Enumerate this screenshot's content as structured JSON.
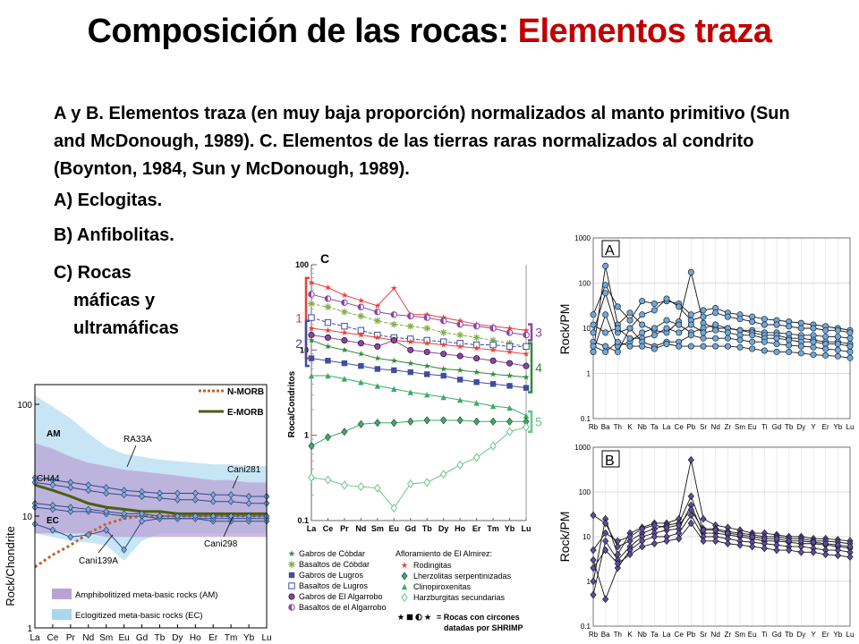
{
  "slide": {
    "title_main": "Composición de las rocas: ",
    "title_accent": "Elementos traza",
    "description": "A y B. Elementos traza (en muy baja proporción) normalizados al manto primitivo (Sun and McDonough, 1989). C. Elementos de las tierras raras normalizados al condrito (Boynton, 1984, Sun y McDonough, 1989).",
    "bullet_a": "A) Eclogitas.",
    "bullet_b": "B) Anfibolitas.",
    "bullet_c1": "C) Rocas",
    "bullet_c2": "máficas y",
    "bullet_c3": "ultramáficas"
  },
  "colors": {
    "title_accent": "#c00000",
    "am_fill": "#b9a3d4",
    "ec_fill": "#a9d7f0",
    "nmorb": "#c8612b",
    "emorb": "#4d5d17"
  },
  "chart_data": [
    {
      "id": "eclogite_ree",
      "type": "line",
      "yscale": "log",
      "ylabel": "Rock/Chondrite",
      "ylim": [
        1,
        150
      ],
      "ytick_labels": [
        "1",
        "10",
        "100"
      ],
      "categories": [
        "La",
        "Ce",
        "Pr",
        "Nd",
        "Sm",
        "Eu",
        "Gd",
        "Tb",
        "Dy",
        "Ho",
        "Er",
        "Tm",
        "Yb",
        "Lu"
      ],
      "legend": [
        {
          "name": "N-MORB",
          "style": "dotted"
        },
        {
          "name": "E-MORB",
          "style": "solid"
        },
        {
          "name": "Amphibolitized meta-basic rocks (AM)",
          "style": "band"
        },
        {
          "name": "Eclogitized meta-basic rocks (EC)",
          "style": "band"
        }
      ],
      "region_labels": [
        "AM",
        "EC"
      ],
      "annotations": [
        "RA33A",
        "CH44",
        "Cani281",
        "Cani298",
        "Cani139A"
      ],
      "bands": [
        {
          "name": "AM",
          "upper": [
            45,
            40,
            34,
            30,
            28,
            26,
            25,
            24,
            23,
            22,
            21,
            21,
            20,
            20
          ],
          "lower": [
            7,
            7,
            7,
            7,
            6.5,
            6.5,
            6.5,
            6.5,
            6.5,
            6.5,
            6.5,
            6.5,
            6.5,
            6.5
          ]
        },
        {
          "name": "EC",
          "upper": [
            120,
            95,
            75,
            55,
            42,
            36,
            34,
            32,
            31,
            30,
            29,
            29,
            28,
            28
          ],
          "lower": [
            7,
            6.5,
            6,
            5.8,
            5.5,
            4,
            6,
            7,
            7,
            7,
            7,
            7,
            7,
            7
          ]
        }
      ],
      "reference": [
        {
          "name": "N-MORB",
          "values": [
            3.5,
            4.5,
            5.5,
            7,
            8.5,
            9.5,
            10,
            10,
            10,
            10,
            10,
            10,
            10,
            10
          ]
        },
        {
          "name": "E-MORB",
          "values": [
            19,
            17,
            15,
            13,
            12,
            11.5,
            11,
            11,
            10.5,
            10.5,
            10.5,
            10.5,
            10.5,
            10.5
          ]
        }
      ],
      "series": [
        {
          "values": [
            22,
            21,
            20,
            19,
            18,
            17,
            16.5,
            16,
            16,
            16,
            15.5,
            15.5,
            15,
            15
          ]
        },
        {
          "values": [
            20,
            19,
            18,
            17,
            16,
            15.5,
            15,
            14.5,
            14,
            14,
            13.5,
            13.5,
            13,
            13
          ]
        },
        {
          "values": [
            12,
            11.5,
            11,
            11,
            10.5,
            10,
            10,
            9.5,
            9.5,
            9.5,
            9,
            9,
            9,
            9
          ]
        },
        {
          "values": [
            8.5,
            7.5,
            6.5,
            6.8,
            7.5,
            5,
            9,
            9.5,
            9.5,
            9.5,
            9.5,
            9.5,
            9.5,
            9.5
          ]
        },
        {
          "values": [
            13,
            12.5,
            12,
            11.5,
            11,
            10.5,
            10.5,
            10,
            10,
            10,
            10,
            10,
            10,
            10
          ]
        }
      ]
    },
    {
      "id": "ree_almirez",
      "panel_label": "C",
      "type": "line",
      "yscale": "log",
      "ylabel": "Roca/Condritos",
      "ylim": [
        0.1,
        100
      ],
      "ytick_labels": [
        "0.1",
        "1",
        "10",
        "100"
      ],
      "categories": [
        "La",
        "Ce",
        "Pr",
        "Nd",
        "Sm",
        "Eu",
        "Gd",
        "Tb",
        "Dy",
        "Ho",
        "Er",
        "Tm",
        "Yb",
        "Lu"
      ],
      "group_labels": [
        "1",
        "2",
        "3",
        "4",
        "5"
      ],
      "legend_header": "Afloramiento de El Almirez:",
      "legend": [
        "Gabros de Cóbdar",
        "Basaltos de Cóbdar",
        "Gabros de Lugros",
        "Basaltos de Lugros",
        "Gabros de El Algarrobo",
        "Basaltos de el Algarrobo",
        "Rodingitas",
        "Lherzolitas serpentinizadas",
        "Clinopiroxenitas",
        "Harzburgitas secundarias"
      ],
      "legend_footnote_1": "= Rocas con circones",
      "legend_footnote_2": "datadas por SHRIMP",
      "series": [
        {
          "name": "Rodingitas",
          "color": "#e8413a",
          "marker": "star",
          "values": [
            62,
            54,
            44,
            38,
            33,
            53,
            26,
            26,
            24,
            22,
            20,
            19,
            18,
            17
          ]
        },
        {
          "name": "Basaltos de el Algarrobo",
          "color": "#8d44a6",
          "marker": "halfcircle",
          "values": [
            45,
            40,
            36,
            32,
            28,
            26,
            25,
            24,
            22,
            20,
            19,
            18,
            16,
            15
          ]
        },
        {
          "name": "Basaltos de Cóbdar",
          "color": "#7fae47",
          "marker": "asterisk",
          "values": [
            35,
            32,
            28,
            25,
            22,
            20,
            19,
            18,
            16,
            15,
            14,
            13,
            12,
            11
          ]
        },
        {
          "name": "Basaltos de Lugros",
          "color": "#3e4da1",
          "marker": "opensquare",
          "values": [
            24,
            21,
            19,
            17,
            15,
            14,
            13.5,
            13,
            12.5,
            12,
            11.5,
            11.5,
            11,
            11
          ]
        },
        {
          "name": "Rodingitas",
          "color": "#e8413a",
          "marker": "star",
          "values": [
            18,
            17,
            16,
            15,
            14,
            13,
            12.5,
            12,
            11.5,
            11,
            10.5,
            10,
            9.5,
            9
          ]
        },
        {
          "name": "Gabros de El Algarrobo",
          "color": "#8d44a6",
          "marker": "circle",
          "values": [
            15,
            14,
            13,
            12,
            11,
            13,
            10,
            9.5,
            9,
            8.5,
            8,
            7.5,
            7,
            6.5
          ]
        },
        {
          "name": "Gabros de Cóbdar",
          "color": "#2e8b3a",
          "marker": "star",
          "values": [
            13,
            11,
            10,
            9,
            8,
            7.5,
            7,
            6.5,
            6,
            5.8,
            5.5,
            5.2,
            5,
            4.8
          ]
        },
        {
          "name": "Gabros de Lugros",
          "color": "#3e4da1",
          "marker": "square",
          "values": [
            8,
            7.5,
            7,
            6.5,
            6,
            5.8,
            5.5,
            5.2,
            5,
            4.5,
            4.2,
            4,
            3.8,
            3.6
          ]
        },
        {
          "name": "Clinopiroxenitas",
          "color": "#3aaa68",
          "marker": "triangle",
          "values": [
            5,
            5,
            4.6,
            4.2,
            3.8,
            3.5,
            3.2,
            3,
            2.8,
            2.6,
            2.4,
            2.2,
            2.1,
            1.7
          ]
        },
        {
          "name": "Lherzolitas serpentinizadas",
          "color": "#3aaa68",
          "marker": "diamond",
          "values": [
            0.75,
            0.95,
            1.1,
            1.35,
            1.4,
            1.4,
            1.45,
            1.5,
            1.5,
            1.5,
            1.45,
            1.45,
            1.45,
            1.45
          ]
        },
        {
          "name": "Harzburgitas secundarias",
          "color": "#6cc48a",
          "marker": "opendiamond",
          "values": [
            0.32,
            0.3,
            0.26,
            0.25,
            0.24,
            0.14,
            0.27,
            0.28,
            0.35,
            0.45,
            0.55,
            0.75,
            1.1,
            1.25
          ]
        }
      ]
    },
    {
      "id": "trace_eclogites",
      "panel_label": "A",
      "type": "line",
      "yscale": "log",
      "ylabel": "Rock/PM",
      "ylim": [
        0.1,
        1000
      ],
      "ytick_labels": [
        "0.1",
        "1",
        "10",
        "100",
        "1000"
      ],
      "categories": [
        "Rb",
        "Ba",
        "Th",
        "K",
        "Nb",
        "Ta",
        "La",
        "Ce",
        "Pb",
        "Sr",
        "Nd",
        "Zr",
        "Sm",
        "Eu",
        "Ti",
        "Gd",
        "Tb",
        "Dy",
        "Y",
        "Er",
        "Yb",
        "Lu"
      ],
      "series": [
        {
          "values": [
            3,
            240,
            12,
            22,
            12,
            9,
            8,
            14,
            175,
            13,
            10,
            10,
            9,
            9,
            8,
            8,
            7.5,
            7,
            7,
            6.5,
            6.5,
            6
          ]
        },
        {
          "values": [
            20,
            90,
            30,
            15,
            40,
            35,
            40,
            35,
            20,
            25,
            28,
            22,
            20,
            18,
            16,
            15,
            14,
            13,
            12,
            11,
            10,
            9
          ]
        },
        {
          "values": [
            8,
            60,
            8,
            10,
            20,
            25,
            45,
            30,
            15,
            18,
            22,
            18,
            16,
            14,
            12,
            12,
            11,
            10,
            10,
            9,
            9,
            8
          ]
        },
        {
          "values": [
            3,
            20,
            4,
            5,
            8,
            10,
            15,
            12,
            8,
            10,
            12,
            10,
            9,
            8,
            7,
            7,
            6,
            6,
            5.5,
            5,
            5,
            4.5
          ]
        },
        {
          "values": [
            12,
            8,
            10,
            6,
            6,
            7,
            10,
            8,
            12,
            8,
            9,
            8,
            7,
            7,
            6,
            6,
            5.5,
            5,
            5,
            4.5,
            4.5,
            4
          ]
        },
        {
          "values": [
            5,
            4,
            3,
            10,
            5,
            4,
            5,
            5,
            7,
            6,
            6,
            6,
            5.5,
            5,
            5,
            4.5,
            4.2,
            4,
            3.8,
            3.5,
            3.3,
            3
          ]
        },
        {
          "values": [
            4,
            3,
            5,
            4,
            4,
            3.5,
            4.5,
            4,
            4,
            4,
            4,
            4,
            3.8,
            3.5,
            3.2,
            3,
            3,
            2.8,
            2.6,
            2.5,
            2.4,
            2.2
          ]
        }
      ]
    },
    {
      "id": "trace_amphibolites",
      "panel_label": "B",
      "type": "line",
      "yscale": "log",
      "ylabel": "Rock/PM",
      "ylim": [
        0.1,
        1000
      ],
      "ytick_labels": [
        "0.1",
        "1",
        "10",
        "100",
        "1000"
      ],
      "categories": [
        "Rb",
        "Ba",
        "Th",
        "K",
        "Nb",
        "Ta",
        "La",
        "Ce",
        "Pb",
        "Sr",
        "Nd",
        "Zr",
        "Sm",
        "Eu",
        "Ti",
        "Gd",
        "Tb",
        "Dy",
        "Y",
        "Er",
        "Yb",
        "Lu"
      ],
      "series": [
        {
          "values": [
            1,
            25,
            4,
            12,
            16,
            20,
            20,
            25,
            520,
            25,
            18,
            16,
            14,
            12,
            12,
            11,
            10,
            10,
            9,
            9,
            8.5,
            8
          ]
        },
        {
          "values": [
            30,
            20,
            6,
            8,
            12,
            15,
            18,
            20,
            80,
            15,
            15,
            13,
            12,
            11,
            10,
            10,
            9,
            9,
            8,
            8,
            7.5,
            7
          ]
        },
        {
          "values": [
            0.5,
            8,
            3,
            6,
            10,
            12,
            14,
            15,
            50,
            12,
            12,
            11,
            10,
            9,
            8,
            8,
            7.5,
            7,
            7,
            6.5,
            6,
            5.5
          ]
        },
        {
          "values": [
            3,
            0.4,
            2,
            5,
            8,
            10,
            10,
            12,
            30,
            10,
            10,
            9,
            8,
            7.5,
            7,
            6.5,
            6,
            6,
            5.5,
            5,
            5,
            4.5
          ]
        },
        {
          "values": [
            5,
            12,
            8,
            10,
            15,
            18,
            16,
            18,
            40,
            14,
            14,
            12,
            11,
            10,
            9,
            9,
            8,
            8,
            7.5,
            7,
            6.5,
            6
          ]
        },
        {
          "values": [
            2,
            5,
            2.5,
            4,
            6,
            7,
            8,
            9,
            20,
            8,
            8,
            7,
            6.5,
            6,
            5.5,
            5,
            5,
            4.5,
            4.5,
            4,
            3.8,
            3.5
          ]
        }
      ]
    }
  ]
}
